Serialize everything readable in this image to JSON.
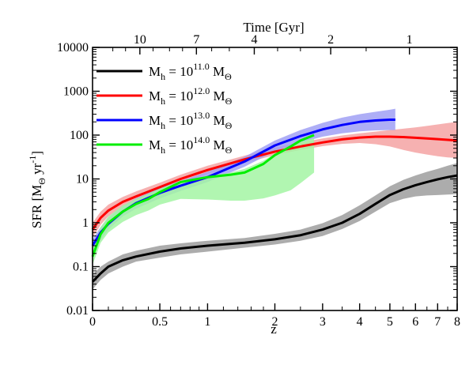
{
  "chart_data": {
    "type": "line",
    "xlabel": "z",
    "ylabel": "SFR [M",
    "ylabel_sub": "Θ",
    "ylabel_unit": " yr",
    "ylabel_sup": "-1",
    "ylabel_close": "]",
    "top_xlabel": "Time [Gyr]",
    "x_scale": "log(1+z)",
    "y_scale": "log",
    "xlim": [
      0,
      8
    ],
    "ylim": [
      0.01,
      10000
    ],
    "x_ticks": [
      0,
      0.5,
      1,
      2,
      3,
      4,
      5,
      6,
      7,
      8
    ],
    "x_tick_labels": [
      "0",
      "0.5",
      "1",
      "2",
      "3",
      "4",
      "5",
      "6",
      "7",
      "8"
    ],
    "y_ticks": [
      0.01,
      0.1,
      1,
      10,
      100,
      1000,
      10000
    ],
    "y_tick_labels": [
      "0.01",
      "0.1",
      "1",
      "10",
      "100",
      "1000",
      "10000"
    ],
    "top_ticks_z": [
      0.33,
      0.87,
      1.65,
      3.2,
      5.75
    ],
    "top_tick_labels": [
      "10",
      "7",
      "4",
      "2",
      "1"
    ],
    "legend_position": "top-left",
    "grid": false,
    "series": [
      {
        "name": "M_h = 10^{11.0} M_Θ",
        "legend_prefix": "M",
        "legend_sub": "h",
        "legend_mid": " = 10",
        "legend_sup": "11.0",
        "legend_post": " M",
        "legend_post_sub": "Θ",
        "color": "#000000",
        "band_color": "#9e9e9e",
        "z": [
          0,
          0.05,
          0.1,
          0.2,
          0.3,
          0.5,
          0.7,
          1,
          1.5,
          2,
          2.5,
          3,
          3.5,
          4,
          4.5,
          5,
          5.5,
          6,
          6.5,
          7,
          7.5,
          8
        ],
        "sfr": [
          0.045,
          0.07,
          0.1,
          0.14,
          0.17,
          0.22,
          0.26,
          0.3,
          0.35,
          0.42,
          0.52,
          0.7,
          1.0,
          1.6,
          2.7,
          4.3,
          5.8,
          7.2,
          8.5,
          9.8,
          11.0,
          12.0
        ],
        "lo": [
          0.03,
          0.05,
          0.07,
          0.1,
          0.13,
          0.16,
          0.19,
          0.22,
          0.27,
          0.32,
          0.39,
          0.5,
          0.72,
          1.1,
          1.8,
          2.8,
          3.5,
          4.0,
          4.2,
          4.3,
          4.4,
          4.5
        ],
        "hi": [
          0.065,
          0.1,
          0.13,
          0.19,
          0.23,
          0.3,
          0.34,
          0.39,
          0.45,
          0.56,
          0.7,
          0.98,
          1.5,
          2.5,
          4.2,
          6.8,
          9.5,
          12.0,
          14.5,
          17.0,
          20.0,
          23.0
        ]
      },
      {
        "name": "M_h = 10^{12.0} M_Θ",
        "legend_prefix": "M",
        "legend_sub": "h",
        "legend_mid": " = 10",
        "legend_sup": "12.0",
        "legend_post": " M",
        "legend_post_sub": "Θ",
        "color": "#ff0000",
        "band_color": "#f4a3a3",
        "z": [
          0,
          0.05,
          0.1,
          0.2,
          0.3,
          0.5,
          0.7,
          1,
          1.5,
          2,
          2.5,
          3,
          3.5,
          4,
          4.5,
          5,
          5.5,
          6,
          6.5,
          7,
          7.5,
          8
        ],
        "sfr": [
          0.7,
          1.3,
          1.9,
          3.0,
          4.0,
          6.5,
          10.0,
          16.0,
          28.0,
          42.0,
          55.0,
          68.0,
          80.0,
          88.0,
          92.0,
          92.0,
          90.0,
          87.0,
          84.0,
          81.0,
          78.0,
          75.0
        ],
        "lo": [
          0.45,
          0.9,
          1.4,
          2.3,
          3.1,
          5.2,
          8.0,
          13.0,
          23.0,
          35.0,
          46.0,
          56.0,
          63.0,
          66.0,
          62.0,
          55.0,
          46.0,
          40.0,
          36.0,
          33.0,
          31.0,
          30.0
        ],
        "hi": [
          1.0,
          1.8,
          2.6,
          3.9,
          5.2,
          8.2,
          12.5,
          20.0,
          34.0,
          52.0,
          68.0,
          84.0,
          98.0,
          110.0,
          120.0,
          130.0,
          140.0,
          150.0,
          162.0,
          175.0,
          188.0,
          200.0
        ]
      },
      {
        "name": "M_h = 10^{13.0} M_Θ",
        "legend_prefix": "M",
        "legend_sub": "h",
        "legend_mid": " = 10",
        "legend_sup": "13.0",
        "legend_post": " M",
        "legend_post_sub": "Θ",
        "color": "#0000ff",
        "band_color": "#a0a0f4",
        "z": [
          0,
          0.05,
          0.1,
          0.2,
          0.3,
          0.5,
          0.7,
          1,
          1.5,
          2,
          2.5,
          3,
          3.5,
          4,
          4.5,
          5,
          5.2
        ],
        "sfr": [
          0.3,
          0.6,
          0.95,
          1.8,
          2.8,
          4.8,
          7.0,
          11.0,
          25.0,
          58.0,
          95.0,
          135.0,
          170.0,
          200.0,
          215.0,
          225.0,
          225.0
        ],
        "lo": [
          0.2,
          0.4,
          0.7,
          1.4,
          2.1,
          3.6,
          5.3,
          8.5,
          19.0,
          43.0,
          68.0,
          92.0,
          110.0,
          122.0,
          128.0,
          130.0,
          130.0
        ],
        "hi": [
          0.42,
          0.8,
          1.3,
          2.4,
          3.6,
          6.2,
          9.0,
          14.5,
          32.0,
          75.0,
          130.0,
          190.0,
          250.0,
          300.0,
          340.0,
          380.0,
          400.0
        ]
      },
      {
        "name": "M_h = 10^{14.0} M_Θ",
        "legend_prefix": "M",
        "legend_sub": "h",
        "legend_mid": " = 10",
        "legend_sup": "14.0",
        "legend_post": " M",
        "legend_post_sub": "Θ",
        "color": "#00ee00",
        "band_color": "#a3f4a3",
        "z": [
          0,
          0.05,
          0.1,
          0.2,
          0.3,
          0.4,
          0.5,
          0.7,
          1,
          1.3,
          1.5,
          1.8,
          2,
          2.3,
          2.5,
          2.8
        ],
        "sfr": [
          0.17,
          0.55,
          1.0,
          1.8,
          2.7,
          3.5,
          5.0,
          8.5,
          11.0,
          12.5,
          14.0,
          22.0,
          35.0,
          55.0,
          75.0,
          100.0
        ],
        "lo": [
          0.11,
          0.35,
          0.6,
          1.05,
          1.5,
          1.9,
          2.6,
          3.5,
          3.4,
          3.2,
          3.2,
          3.6,
          4.2,
          5.5,
          8.0,
          14.0
        ],
        "hi": [
          0.26,
          0.8,
          1.4,
          2.5,
          3.5,
          4.6,
          6.0,
          8.8,
          11.5,
          14.0,
          17.0,
          26.0,
          38.0,
          55.0,
          70.0,
          85.0
        ]
      }
    ]
  }
}
